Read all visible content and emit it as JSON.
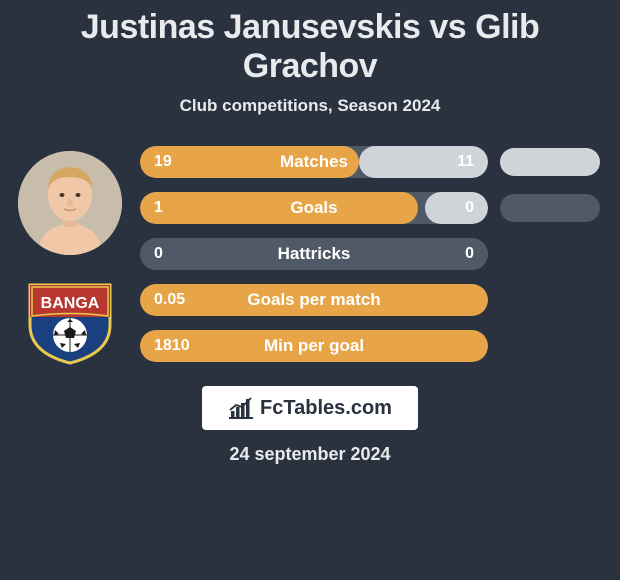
{
  "title": "Justinas Janusevskis vs Glib Grachov",
  "subtitle": "Club competitions, Season 2024",
  "date": "24 september 2024",
  "brand": "FcTables.com",
  "colors": {
    "background": "#2a3240",
    "bar_track": "#505966",
    "bar_left": "#e8a548",
    "bar_right": "#d0d4d9",
    "text": "#e8eaed"
  },
  "player": {
    "name": "Justinas Janusevskis",
    "skin": "#f0c8a8",
    "hair": "#d4a860"
  },
  "club": {
    "name": "Banga",
    "text": "BANGA",
    "shield_top": "#b83830",
    "shield_bottom": "#1a4080",
    "border": "#e8c850"
  },
  "stats": [
    {
      "label": "Matches",
      "left_val": "19",
      "right_val": "11",
      "left_pct": 63,
      "right_pct": 37,
      "pill": "light"
    },
    {
      "label": "Goals",
      "left_val": "1",
      "right_val": "0",
      "left_pct": 80,
      "right_pct": 18,
      "pill": "dark"
    },
    {
      "label": "Hattricks",
      "left_val": "0",
      "right_val": "0",
      "left_pct": 0,
      "right_pct": 0,
      "pill": "none"
    },
    {
      "label": "Goals per match",
      "left_val": "0.05",
      "right_val": "",
      "left_pct": 100,
      "right_pct": 0,
      "pill": "none"
    },
    {
      "label": "Min per goal",
      "left_val": "1810",
      "right_val": "",
      "left_pct": 100,
      "right_pct": 0,
      "pill": "none"
    }
  ]
}
